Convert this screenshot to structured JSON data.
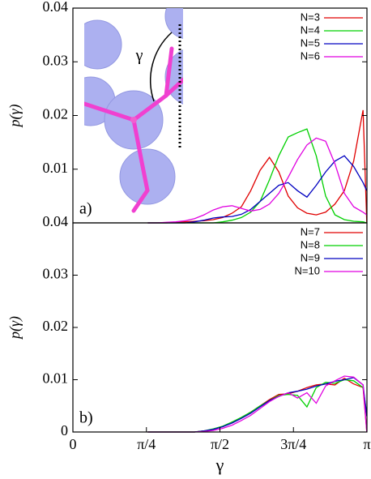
{
  "chart_data": [
    {
      "type": "line",
      "ylabel": "p(γ)",
      "annotation": "a)",
      "inset_label": "γ",
      "xlim": [
        0,
        3.14159
      ],
      "ylim": [
        0,
        0.04
      ],
      "yticks": [
        0.01,
        0.02,
        0.03,
        0.04
      ],
      "x": [
        0.8,
        0.9,
        1.0,
        1.1,
        1.2,
        1.3,
        1.4,
        1.5,
        1.6,
        1.7,
        1.8,
        1.9,
        2.0,
        2.1,
        2.2,
        2.3,
        2.4,
        2.5,
        2.6,
        2.7,
        2.8,
        2.9,
        3.0,
        3.1,
        3.14
      ],
      "legend": "upper right",
      "series": [
        {
          "name": "N=3",
          "color": "#e00000",
          "values": [
            0,
            0,
            0,
            0.0001,
            0.0002,
            0.0003,
            0.0004,
            0.0006,
            0.001,
            0.0018,
            0.003,
            0.006,
            0.0098,
            0.0122,
            0.0095,
            0.005,
            0.0028,
            0.0018,
            0.0015,
            0.002,
            0.0035,
            0.006,
            0.0115,
            0.021,
            0
          ]
        },
        {
          "name": "N=4",
          "color": "#00d000",
          "values": [
            0,
            0,
            0,
            0,
            0,
            0,
            0,
            0,
            0.0002,
            0.0005,
            0.001,
            0.002,
            0.004,
            0.008,
            0.0125,
            0.016,
            0.0168,
            0.0175,
            0.0125,
            0.005,
            0.0015,
            0.0006,
            0.0003,
            0.0002,
            0
          ]
        },
        {
          "name": "N=5",
          "color": "#0000c0",
          "values": [
            0,
            0,
            0,
            0,
            0,
            0.0002,
            0.0005,
            0.0009,
            0.0011,
            0.0012,
            0.0016,
            0.0025,
            0.004,
            0.0055,
            0.007,
            0.0075,
            0.006,
            0.0048,
            0.007,
            0.0095,
            0.0115,
            0.0125,
            0.0105,
            0.0075,
            0.006
          ]
        },
        {
          "name": "N=6",
          "color": "#e000e0",
          "values": [
            0,
            0,
            0.0001,
            0.0002,
            0.0004,
            0.0008,
            0.0015,
            0.0024,
            0.003,
            0.0032,
            0.0027,
            0.0022,
            0.0025,
            0.0035,
            0.0055,
            0.0085,
            0.0118,
            0.0145,
            0.0158,
            0.0152,
            0.011,
            0.0055,
            0.003,
            0.002,
            0.0015
          ]
        }
      ]
    },
    {
      "type": "line",
      "ylabel": "p(γ)",
      "xlabel": "γ",
      "annotation": "b)",
      "xlim": [
        0,
        3.14159
      ],
      "ylim": [
        0,
        0.04
      ],
      "yticks": [
        0,
        0.01,
        0.02,
        0.03,
        0.04
      ],
      "xticks": [
        0,
        {
          "value": 0.785398,
          "label": "π/4"
        },
        {
          "value": 1.570796,
          "label": "π/2"
        },
        {
          "value": 2.356194,
          "label": "3π/4"
        },
        {
          "value": 3.14159,
          "label": "π"
        }
      ],
      "x": [
        0.8,
        0.9,
        1.0,
        1.1,
        1.2,
        1.3,
        1.4,
        1.5,
        1.6,
        1.7,
        1.8,
        1.9,
        2.0,
        2.1,
        2.2,
        2.3,
        2.4,
        2.5,
        2.6,
        2.7,
        2.8,
        2.9,
        3.0,
        3.1,
        3.14
      ],
      "legend": "upper right",
      "series": [
        {
          "name": "N=7",
          "color": "#e00000",
          "values": [
            0,
            0,
            0,
            0,
            0,
            0,
            0.0002,
            0.0005,
            0.001,
            0.0018,
            0.0027,
            0.0038,
            0.005,
            0.0062,
            0.0072,
            0.0073,
            0.0078,
            0.0085,
            0.009,
            0.0092,
            0.009,
            0.0103,
            0.0092,
            0.0085,
            0
          ]
        },
        {
          "name": "N=8",
          "color": "#00d000",
          "values": [
            0,
            0,
            0,
            0,
            0,
            0,
            0.0002,
            0.0006,
            0.0011,
            0.0019,
            0.0028,
            0.0038,
            0.005,
            0.006,
            0.007,
            0.0072,
            0.007,
            0.0048,
            0.0085,
            0.0095,
            0.0093,
            0.01,
            0.0098,
            0.0085,
            0.0035
          ]
        },
        {
          "name": "N=9",
          "color": "#0000c0",
          "values": [
            0,
            0,
            0,
            0,
            0,
            0,
            0.0002,
            0.0005,
            0.001,
            0.0017,
            0.0026,
            0.0036,
            0.0048,
            0.006,
            0.0068,
            0.0075,
            0.0078,
            0.0082,
            0.0088,
            0.0092,
            0.0097,
            0.01,
            0.0104,
            0.009,
            0.003
          ]
        },
        {
          "name": "N=10",
          "color": "#e000e0",
          "values": [
            0,
            0,
            0,
            0,
            0,
            0,
            0.0001,
            0.0003,
            0.0007,
            0.0013,
            0.0022,
            0.0032,
            0.0045,
            0.0058,
            0.0068,
            0.0075,
            0.0065,
            0.0075,
            0.0055,
            0.0088,
            0.0098,
            0.0107,
            0.0105,
            0.009,
            0
          ]
        }
      ]
    }
  ]
}
